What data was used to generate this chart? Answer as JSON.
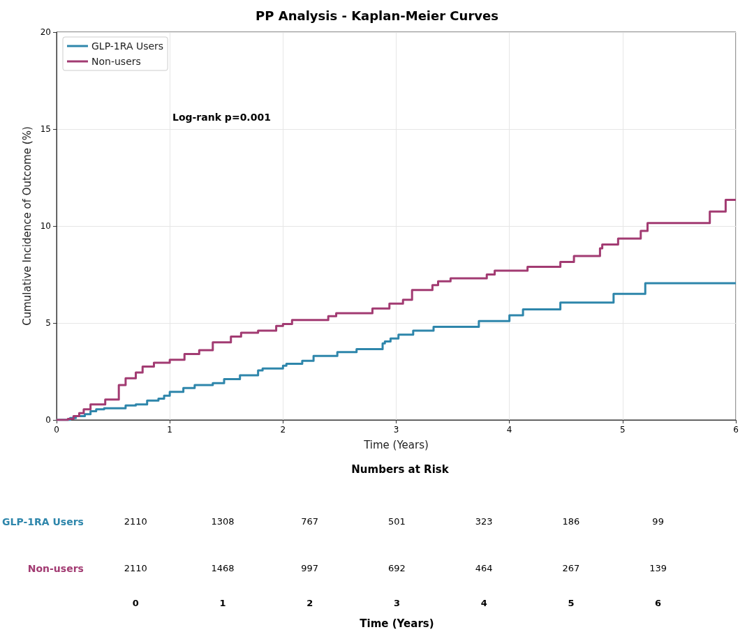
{
  "chart_data": [
    {
      "type": "step",
      "title": "PP Analysis - Kaplan-Meier Curves",
      "xlabel": "Time (Years)",
      "ylabel": "Cumulative Incidence of Outcome (%)",
      "xlim": [
        0,
        6
      ],
      "xticks": [
        0,
        1,
        2,
        3,
        4,
        5,
        6
      ],
      "ylim": [
        0,
        20
      ],
      "yticks": [
        0,
        5,
        10,
        15,
        20
      ],
      "grid": true,
      "legend": "top left",
      "line_style": "solid",
      "marker": "none",
      "annotations": [
        "Log-rank p=0.001"
      ],
      "series": [
        {
          "name": "GLP-1RA Users",
          "color": "#2e86ab",
          "x": [
            0,
            0.12,
            0.17,
            0.25,
            0.3,
            0.35,
            0.42,
            0.61,
            0.7,
            0.8,
            0.9,
            0.95,
            1.0,
            1.12,
            1.22,
            1.38,
            1.48,
            1.62,
            1.78,
            1.82,
            2.0,
            2.03,
            2.17,
            2.27,
            2.48,
            2.65,
            2.88,
            2.9,
            2.95,
            3.02,
            3.15,
            3.33,
            3.73,
            4.0,
            4.12,
            4.45,
            4.92,
            5.2,
            6.0
          ],
          "values": [
            0,
            0.1,
            0.2,
            0.3,
            0.45,
            0.55,
            0.6,
            0.75,
            0.8,
            1.0,
            1.1,
            1.25,
            1.45,
            1.65,
            1.8,
            1.9,
            2.1,
            2.3,
            2.55,
            2.65,
            2.8,
            2.9,
            3.05,
            3.3,
            3.5,
            3.65,
            3.95,
            4.05,
            4.2,
            4.4,
            4.6,
            4.8,
            5.1,
            5.4,
            5.7,
            6.05,
            6.5,
            7.05,
            7.05
          ]
        },
        {
          "name": "Non-users",
          "color": "#a23b72",
          "x": [
            0,
            0.1,
            0.15,
            0.2,
            0.24,
            0.3,
            0.43,
            0.55,
            0.61,
            0.7,
            0.76,
            0.86,
            1.0,
            1.13,
            1.26,
            1.38,
            1.54,
            1.63,
            1.78,
            1.94,
            2.0,
            2.08,
            2.4,
            2.47,
            2.79,
            2.94,
            3.06,
            3.14,
            3.32,
            3.37,
            3.48,
            3.8,
            3.87,
            4.16,
            4.45,
            4.57,
            4.8,
            4.82,
            4.96,
            5.16,
            5.22,
            5.77,
            5.91,
            6.0
          ],
          "values": [
            0,
            0.05,
            0.2,
            0.35,
            0.55,
            0.8,
            1.05,
            1.8,
            2.15,
            2.45,
            2.75,
            2.95,
            3.1,
            3.4,
            3.6,
            4.0,
            4.3,
            4.5,
            4.6,
            4.85,
            4.95,
            5.15,
            5.35,
            5.5,
            5.75,
            6.0,
            6.2,
            6.7,
            6.95,
            7.15,
            7.3,
            7.5,
            7.7,
            7.9,
            8.15,
            8.45,
            8.85,
            9.05,
            9.35,
            9.75,
            10.15,
            10.75,
            11.35,
            11.35
          ]
        }
      ]
    },
    {
      "type": "heatmap",
      "title": "Numbers at Risk",
      "xlabel": "Time (Years)",
      "categories": [
        "0",
        "1",
        "2",
        "3",
        "4",
        "5",
        "6"
      ],
      "y_categories": [
        "GLP-1RA Users",
        "Non-users"
      ],
      "colors": [
        "#2e86ab",
        "#a23b72"
      ],
      "data_labels": true,
      "cells": [
        [
          2110,
          1308,
          767,
          501,
          323,
          186,
          99
        ],
        [
          2110,
          1468,
          997,
          692,
          464,
          267,
          139
        ]
      ]
    }
  ]
}
